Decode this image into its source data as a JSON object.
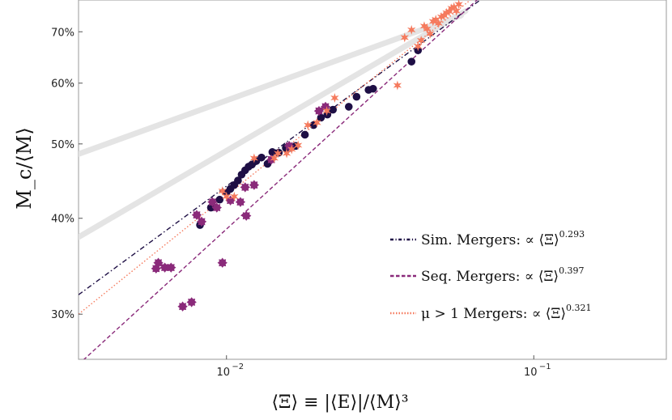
{
  "chart_data": {
    "type": "scatter",
    "xlabel": "⟨Ξ⟩ ≡ |⟨E⟩|/⟨M⟩³",
    "ylabel": "M_c/⟨M⟩",
    "x_scale": "log",
    "y_scale": "log",
    "xlim": [
      0.0033,
      0.27
    ],
    "ylim": [
      0.262,
      0.77
    ],
    "grid": false,
    "legend_position": "right",
    "x_ticks": [
      {
        "value": 0.01,
        "label": "10",
        "exp": "−2"
      },
      {
        "value": 0.1,
        "label": "10",
        "exp": "−1"
      }
    ],
    "y_ticks": [
      {
        "value": 0.3,
        "label": "30%"
      },
      {
        "value": 0.4,
        "label": "40%"
      },
      {
        "value": 0.5,
        "label": "50%"
      },
      {
        "value": 0.6,
        "label": "60%"
      },
      {
        "value": 0.7,
        "label": "70%"
      }
    ],
    "background_bands": [
      {
        "points": [
          [
            0.0033,
            0.485
          ],
          [
            0.058,
            0.735
          ]
        ],
        "color": "#e4e4e4"
      },
      {
        "points": [
          [
            0.0033,
            0.378
          ],
          [
            0.06,
            0.745
          ]
        ],
        "color": "#e4e4e4"
      }
    ],
    "series": [
      {
        "name": "Sim.",
        "label_text": "Sim.   Mergers: ∝ ⟨Ξ⟩",
        "exponent": "0.293",
        "color": "#1e0f45",
        "marker": "circle",
        "line_style": "dashdot",
        "fit": [
          [
            0.0033,
            0.318
          ],
          [
            0.12,
            0.914
          ]
        ],
        "x": [
          0.0082,
          0.0089,
          0.0095,
          0.01,
          0.0103,
          0.0106,
          0.0109,
          0.0112,
          0.0115,
          0.0118,
          0.0121,
          0.0125,
          0.013,
          0.0136,
          0.0141,
          0.0148,
          0.0156,
          0.016,
          0.0168,
          0.018,
          0.0192,
          0.0203,
          0.0213,
          0.0222,
          0.025,
          0.0265,
          0.029,
          0.03,
          0.04,
          0.042
        ],
        "y": [
          0.392,
          0.413,
          0.423,
          0.432,
          0.437,
          0.442,
          0.448,
          0.456,
          0.462,
          0.467,
          0.47,
          0.475,
          0.48,
          0.471,
          0.488,
          0.487,
          0.494,
          0.494,
          0.497,
          0.514,
          0.529,
          0.541,
          0.546,
          0.554,
          0.559,
          0.576,
          0.588,
          0.59,
          0.64,
          0.662
        ]
      },
      {
        "name": "Seq.",
        "label_text": "Seq.   Mergers: ∝ ⟨Ξ⟩",
        "exponent": "0.397",
        "color": "#8a2a7a",
        "marker": "square",
        "line_style": "dashed",
        "fit": [
          [
            0.0033,
            0.258
          ],
          [
            0.12,
            0.962
          ]
        ],
        "x": [
          0.0059,
          0.006,
          0.0063,
          0.0066,
          0.0072,
          0.0077,
          0.008,
          0.0083,
          0.009,
          0.0093,
          0.0097,
          0.0103,
          0.0111,
          0.0115,
          0.0116,
          0.0123,
          0.014,
          0.016,
          0.02,
          0.021
        ],
        "y": [
          0.344,
          0.35,
          0.345,
          0.345,
          0.307,
          0.311,
          0.404,
          0.396,
          0.42,
          0.413,
          0.35,
          0.422,
          0.42,
          0.439,
          0.403,
          0.442,
          0.477,
          0.497,
          0.552,
          0.559
        ]
      },
      {
        "name": "μ > 1",
        "label_text": "μ > 1 Mergers: ∝ ⟨Ξ⟩",
        "exponent": "0.321",
        "color": "#f57a5d",
        "marker": "star",
        "line_style": "dotted",
        "fit": [
          [
            0.0033,
            0.3
          ],
          [
            0.12,
            0.951
          ]
        ],
        "x": [
          0.0097,
          0.01,
          0.0106,
          0.0123,
          0.0143,
          0.0147,
          0.0157,
          0.0163,
          0.0171,
          0.0184,
          0.0197,
          0.0212,
          0.0225,
          0.036,
          0.038,
          0.04,
          0.042,
          0.043,
          0.044,
          0.045,
          0.046,
          0.047,
          0.048,
          0.049,
          0.05,
          0.051,
          0.052,
          0.053,
          0.054,
          0.055,
          0.056,
          0.057
        ],
        "y": [
          0.434,
          0.427,
          0.427,
          0.479,
          0.479,
          0.486,
          0.486,
          0.492,
          0.498,
          0.529,
          0.533,
          0.552,
          0.574,
          0.596,
          0.688,
          0.704,
          0.67,
          0.682,
          0.712,
          0.706,
          0.696,
          0.722,
          0.726,
          0.718,
          0.732,
          0.735,
          0.741,
          0.744,
          0.751,
          0.754,
          0.745,
          0.76
        ]
      }
    ]
  }
}
